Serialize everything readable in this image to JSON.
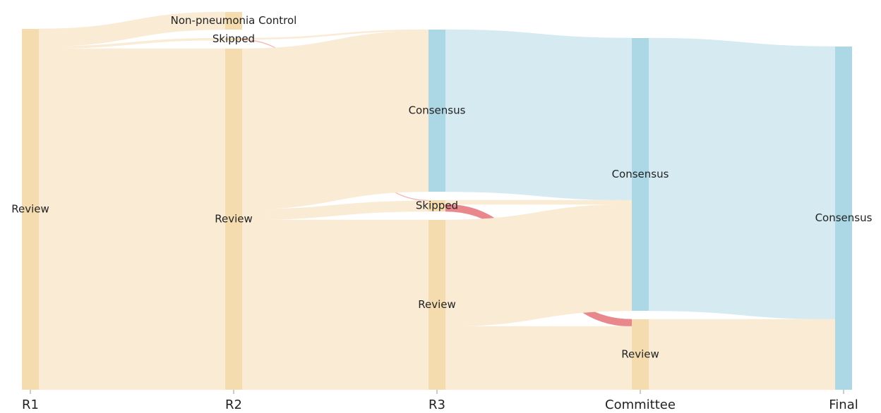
{
  "chart_data": {
    "type": "sankey",
    "stages": [
      "R1",
      "R2",
      "R3",
      "Committee",
      "Final"
    ],
    "nodes": [
      {
        "label": "Review",
        "stage": 0,
        "color": "#f5dcae"
      },
      {
        "label": "Non-pneumonia Control",
        "stage": 1,
        "color": "#f5dcae"
      },
      {
        "label": "Skipped",
        "stage": 1,
        "color": "#f5dcae"
      },
      {
        "label": "Review",
        "stage": 1,
        "color": "#f5dcae"
      },
      {
        "label": "Consensus",
        "stage": 2,
        "color": "#acd7e4"
      },
      {
        "label": "Skipped",
        "stage": 2,
        "color": "#f5dcae"
      },
      {
        "label": "Review",
        "stage": 2,
        "color": "#f5dcae"
      },
      {
        "label": "Consensus",
        "stage": 3,
        "color": "#acd7e4"
      },
      {
        "label": "Review",
        "stage": 3,
        "color": "#f5dcae"
      },
      {
        "label": "Consensus",
        "stage": 4,
        "color": "#acd7e4"
      }
    ],
    "links": [
      {
        "source": 0,
        "target": 1,
        "value": 25,
        "color": "#faebd5"
      },
      {
        "source": 0,
        "target": 2,
        "value": 3,
        "color": "#faebd5"
      },
      {
        "source": 0,
        "target": 3,
        "value": 484,
        "color": "#faebd5"
      },
      {
        "source": 2,
        "target": 4,
        "value": 2,
        "color": "#faebd5"
      },
      {
        "source": 2,
        "target": 5,
        "value": 1,
        "color": "#f4b9b3"
      },
      {
        "source": 3,
        "target": 4,
        "value": 228,
        "color": "#faebd5"
      },
      {
        "source": 3,
        "target": 5,
        "value": 15,
        "color": "#faebd5"
      },
      {
        "source": 3,
        "target": 6,
        "value": 241,
        "color": "#faebd5"
      },
      {
        "source": 4,
        "target": 7,
        "value": 230,
        "color": "#d5ebf1"
      },
      {
        "source": 5,
        "target": 7,
        "value": 6,
        "color": "#faebd5"
      },
      {
        "source": 5,
        "target": 8,
        "value": 10,
        "color": "#e9888c"
      },
      {
        "source": 6,
        "target": 7,
        "value": 151,
        "color": "#faebd5"
      },
      {
        "source": 6,
        "target": 8,
        "value": 90,
        "color": "#faebd5"
      },
      {
        "source": 7,
        "target": 9,
        "value": 387,
        "color": "#d5ebf1"
      },
      {
        "source": 8,
        "target": 9,
        "value": 100,
        "color": "#faebd5"
      }
    ]
  }
}
